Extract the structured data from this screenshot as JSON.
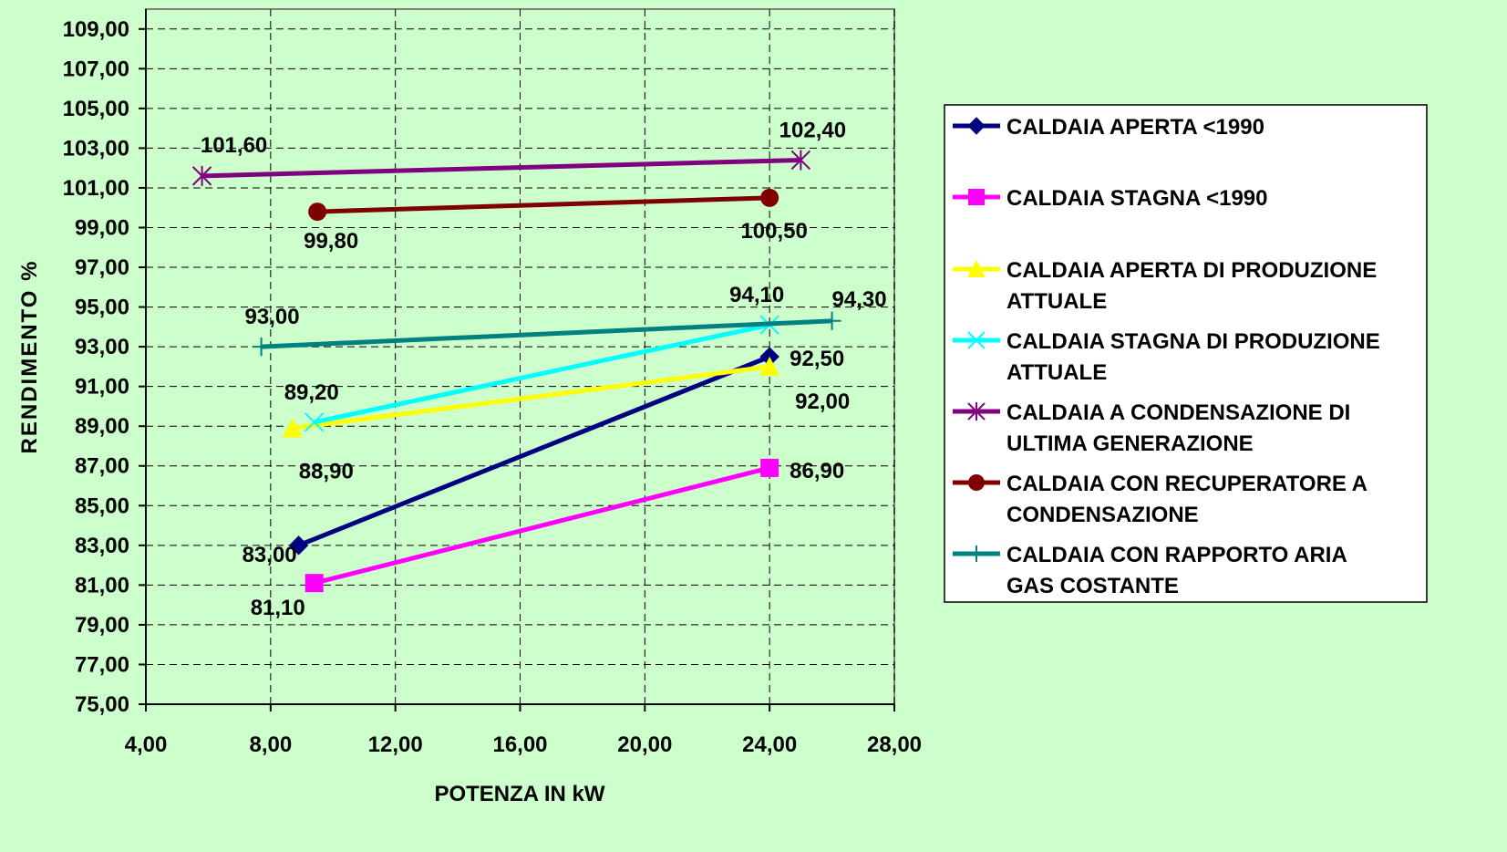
{
  "chart_data": {
    "type": "line",
    "xlabel": "POTENZA IN kW",
    "ylabel": "RENDIMENTO %",
    "xlim": [
      4,
      28
    ],
    "ylim": [
      75,
      110
    ],
    "x_ticks": [
      "4,00",
      "8,00",
      "12,00",
      "16,00",
      "20,00",
      "24,00",
      "28,00"
    ],
    "x_tick_values": [
      4,
      8,
      12,
      16,
      20,
      24,
      28
    ],
    "y_ticks": [
      "75,00",
      "77,00",
      "79,00",
      "81,00",
      "83,00",
      "85,00",
      "87,00",
      "89,00",
      "91,00",
      "93,00",
      "95,00",
      "97,00",
      "99,00",
      "101,00",
      "103,00",
      "105,00",
      "107,00",
      "109,00"
    ],
    "y_tick_values": [
      75,
      77,
      79,
      81,
      83,
      85,
      87,
      89,
      91,
      93,
      95,
      97,
      99,
      101,
      103,
      105,
      107,
      109
    ],
    "grid": true,
    "legend_position": "right",
    "series": [
      {
        "name": "CALDAIA APERTA <1990",
        "legend_lines": [
          "CALDAIA APERTA <1990"
        ],
        "color": "#000080",
        "marker": "diamond",
        "x": [
          8.9,
          24.0
        ],
        "y": [
          83.0,
          92.5
        ],
        "labels": [
          "83,00",
          "92,50"
        ]
      },
      {
        "name": "CALDAIA STAGNA <1990",
        "legend_lines": [
          "CALDAIA STAGNA <1990"
        ],
        "color": "#ff00ff",
        "marker": "square",
        "x": [
          9.4,
          24.0
        ],
        "y": [
          81.1,
          86.9
        ],
        "labels": [
          "81,10",
          "86,90"
        ]
      },
      {
        "name": "CALDAIA APERTA DI PRODUZIONE ATTUALE",
        "legend_lines": [
          "CALDAIA APERTA DI PRODUZIONE",
          "ATTUALE"
        ],
        "color": "#ffff00",
        "marker": "triangle",
        "x": [
          8.7,
          24.0
        ],
        "y": [
          88.9,
          92.0
        ],
        "labels": [
          "88,90",
          "92,00"
        ]
      },
      {
        "name": "CALDAIA STAGNA DI PRODUZIONE ATTUALE",
        "legend_lines": [
          "CALDAIA STAGNA DI PRODUZIONE",
          "ATTUALE"
        ],
        "color": "#00ffff",
        "marker": "x",
        "x": [
          9.4,
          24.0
        ],
        "y": [
          89.2,
          94.1
        ],
        "labels": [
          "89,20",
          "94,10"
        ]
      },
      {
        "name": "CALDAIA A CONDENSAZIONE DI ULTIMA GENERAZIONE",
        "legend_lines": [
          "CALDAIA A CONDENSAZIONE DI",
          "ULTIMA GENERAZIONE"
        ],
        "color": "#800080",
        "marker": "asterisk",
        "x": [
          5.8,
          25.0
        ],
        "y": [
          101.6,
          102.4
        ],
        "labels": [
          "101,60",
          "102,40"
        ]
      },
      {
        "name": "CALDAIA CON RECUPERATORE A CONDENSAZIONE",
        "legend_lines": [
          "CALDAIA CON RECUPERATORE A",
          "CONDENSAZIONE"
        ],
        "color": "#800000",
        "marker": "circle",
        "x": [
          9.5,
          24.0
        ],
        "y": [
          99.8,
          100.5
        ],
        "labels": [
          "99,80",
          "100,50"
        ]
      },
      {
        "name": "CALDAIA CON RAPPORTO ARIA GAS COSTANTE",
        "legend_lines": [
          "CALDAIA CON RAPPORTO ARIA",
          "GAS COSTANTE"
        ],
        "color": "#008080",
        "marker": "plus",
        "x": [
          7.7,
          26.0
        ],
        "y": [
          93.0,
          94.3
        ],
        "labels": [
          "93,00",
          "94,30"
        ]
      }
    ]
  }
}
